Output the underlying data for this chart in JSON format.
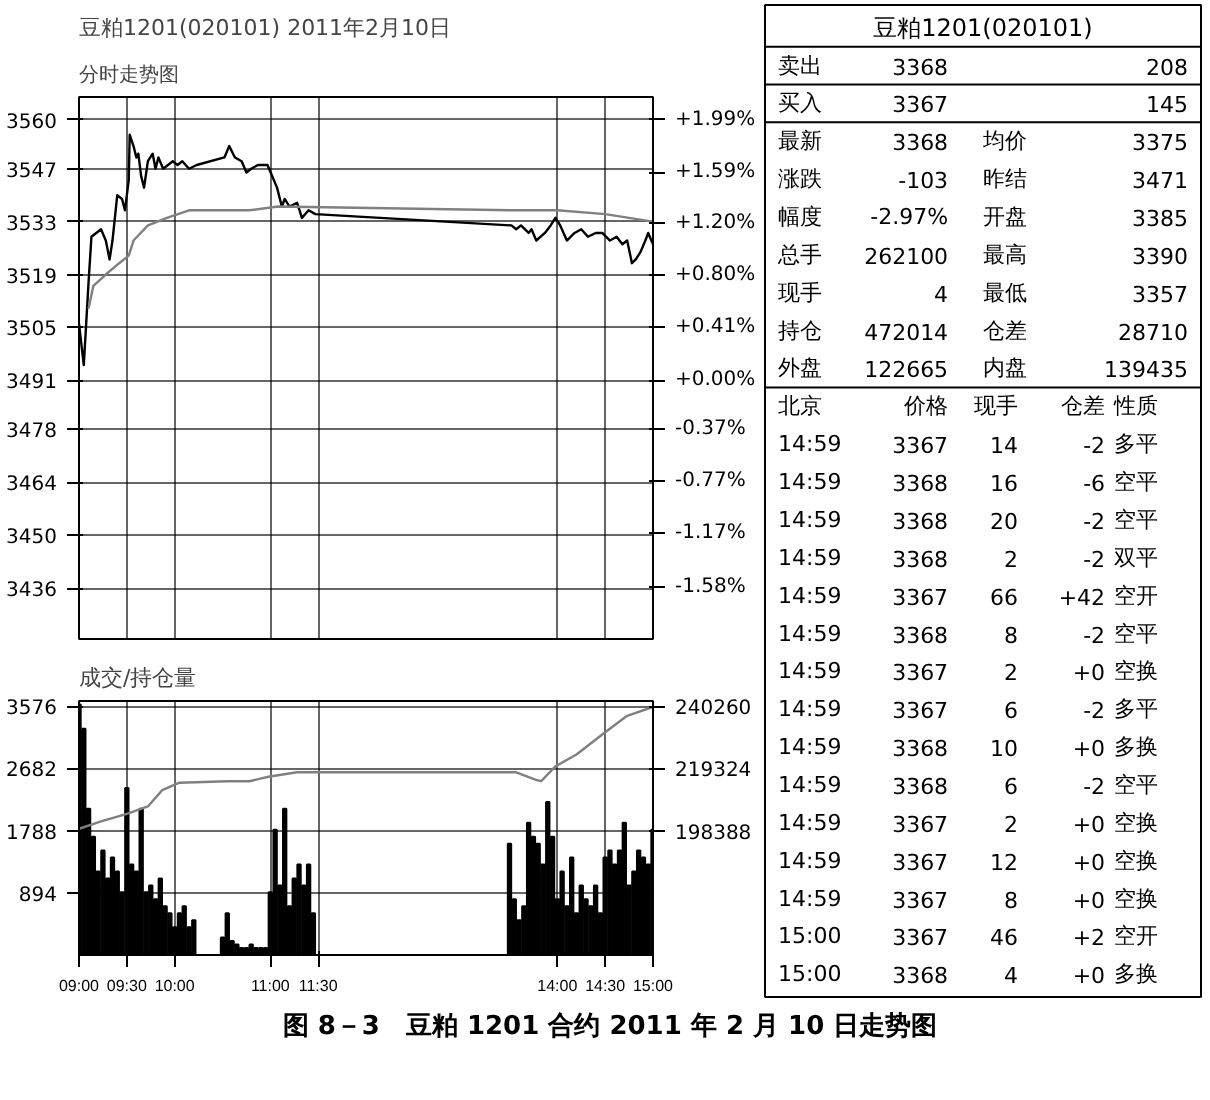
{
  "chart_data": [
    {
      "type": "line",
      "title": "豆粕1201(020101) 2011年2月10日",
      "subtitle": "分时走势图",
      "tick_labels": "y",
      "grid": true,
      "xlim": [
        9,
        15
      ],
      "xticks": [
        9,
        9.5,
        10,
        11,
        11.5,
        14,
        14.5,
        15
      ],
      "ylim": [
        3422.5,
        3566
      ],
      "yticks": [
        3560,
        3547,
        3533,
        3519,
        3505,
        3491,
        3478,
        3464,
        3450,
        3436
      ],
      "y2lim": [
        -1.976,
        2.163
      ],
      "y2ticks": [
        {
          "value": 1.99,
          "label": "+1.99%"
        },
        {
          "value": 1.59,
          "label": "+1.59%"
        },
        {
          "value": 1.2,
          "label": "+1.20%"
        },
        {
          "value": 0.8,
          "label": "+0.80%"
        },
        {
          "value": 0.41,
          "label": "+0.41%"
        },
        {
          "value": 0,
          "label": "+0.00%"
        },
        {
          "value": -0.37,
          "label": "-0.37%"
        },
        {
          "value": -0.77,
          "label": "-0.77%"
        },
        {
          "value": -1.17,
          "label": "-1.17%"
        },
        {
          "value": -1.58,
          "label": "-1.58%"
        }
      ],
      "series": [
        {
          "type": "line",
          "color": "#000000",
          "x": [
            9.0,
            9.05,
            9.1,
            9.13,
            9.18,
            9.23,
            9.28,
            9.32,
            9.35,
            9.4,
            9.45,
            9.48,
            9.52,
            9.53,
            9.57,
            9.6,
            9.62,
            9.65,
            9.68,
            9.72,
            9.77,
            9.8,
            9.83,
            9.88,
            9.93,
            9.98,
            10.03,
            10.08,
            10.15,
            10.23,
            10.52,
            10.57,
            10.63,
            10.7,
            10.75,
            10.8,
            10.87,
            10.97,
            11.02,
            11.07,
            11.12,
            11.15,
            11.2,
            11.28,
            11.33,
            11.4,
            11.47,
            13.52,
            13.57,
            13.62,
            13.7,
            13.73,
            13.78,
            13.87,
            13.93,
            13.98,
            14.03,
            14.1,
            14.18,
            14.25,
            14.32,
            14.4,
            14.47,
            14.55,
            14.62,
            14.68,
            14.73,
            14.78,
            14.82,
            14.87,
            14.92,
            14.95,
            15.0
          ],
          "values": [
            3506,
            3495,
            3517,
            3529,
            3530,
            3531,
            3528,
            3523,
            3528,
            3540,
            3539,
            3536,
            3544,
            3556,
            3553,
            3550,
            3551,
            3545,
            3542,
            3549,
            3551,
            3547,
            3550,
            3547,
            3548,
            3549,
            3548,
            3549,
            3547,
            3548,
            3550,
            3553,
            3550,
            3549,
            3546,
            3547,
            3548,
            3548,
            3545,
            3542,
            3537,
            3539,
            3537,
            3538,
            3534,
            3536,
            3535,
            3532,
            3531,
            3532,
            3530,
            3531,
            3528,
            3530,
            3532,
            3534,
            3532,
            3528,
            3530,
            3531,
            3529,
            3530,
            3530,
            3528,
            3529,
            3527,
            3528,
            3522,
            3523,
            3525,
            3528,
            3530,
            3527
          ]
        },
        {
          "type": "line",
          "color": "#808080",
          "x": [
            9.1,
            9.15,
            9.28,
            9.42,
            9.52,
            9.57,
            9.72,
            9.92,
            10.15,
            10.78,
            11.08,
            13.52,
            14.0,
            14.5,
            15.0
          ],
          "values": [
            3510,
            3516,
            3519,
            3522,
            3524,
            3528,
            3532,
            3534,
            3536,
            3536,
            3537,
            3536,
            3536,
            3535,
            3533
          ]
        }
      ]
    },
    {
      "type": "bar",
      "title": "成交/持仓量",
      "grid": true,
      "xlim": [
        9,
        15
      ],
      "xticks": [
        {
          "value": 9,
          "label": "09:00"
        },
        {
          "value": 9.5,
          "label": "09:30"
        },
        {
          "value": 10,
          "label": "10:00"
        },
        {
          "value": 11,
          "label": "11:00"
        },
        {
          "value": 11.5,
          "label": "11:30"
        },
        {
          "value": 14,
          "label": "14:00"
        },
        {
          "value": 14.5,
          "label": "14:30"
        },
        {
          "value": 15,
          "label": "15:00"
        }
      ],
      "ylim": [
        0,
        3650
      ],
      "yticks": [
        3576,
        2682,
        1788,
        894
      ],
      "y2lim": [
        156517,
        241992
      ],
      "y2ticks": [
        240260,
        219324,
        198388
      ],
      "series": [
        {
          "type": "bar",
          "color": "#000000",
          "x": [
            9.0,
            9.05,
            9.1,
            9.15,
            9.2,
            9.25,
            9.3,
            9.35,
            9.4,
            9.45,
            9.5,
            9.55,
            9.6,
            9.65,
            9.7,
            9.75,
            9.8,
            9.85,
            9.9,
            9.95,
            10.0,
            10.05,
            10.1,
            10.15,
            10.2,
            10.5,
            10.55,
            10.6,
            10.65,
            10.7,
            10.75,
            10.8,
            10.85,
            10.9,
            10.95,
            11.0,
            11.05,
            11.1,
            11.15,
            11.2,
            11.25,
            11.3,
            11.35,
            11.4,
            11.45,
            13.5,
            13.55,
            13.6,
            13.65,
            13.7,
            13.75,
            13.8,
            13.85,
            13.9,
            13.95,
            14.0,
            14.05,
            14.1,
            14.15,
            14.2,
            14.25,
            14.3,
            14.35,
            14.4,
            14.45,
            14.5,
            14.55,
            14.6,
            14.65,
            14.7,
            14.75,
            14.8,
            14.85,
            14.9,
            14.95,
            15.0
          ],
          "values": [
            3600,
            3250,
            2100,
            1700,
            1200,
            1500,
            1100,
            1400,
            1200,
            900,
            2400,
            1300,
            1200,
            2100,
            900,
            1000,
            800,
            1100,
            700,
            600,
            400,
            600,
            700,
            400,
            500,
            250,
            600,
            200,
            150,
            100,
            100,
            150,
            100,
            100,
            100,
            900,
            1800,
            1000,
            2100,
            700,
            1100,
            1300,
            1000,
            1300,
            600,
            1600,
            800,
            500,
            700,
            1900,
            1700,
            1600,
            1300,
            2200,
            1700,
            800,
            1200,
            700,
            1400,
            600,
            1000,
            800,
            700,
            1000,
            600,
            1400,
            1500,
            1300,
            1500,
            1900,
            1000,
            1200,
            1500,
            1400,
            1300,
            1800
          ]
        },
        {
          "type": "line",
          "axis": "y2",
          "color": "#808080",
          "x": [
            9.0,
            9.23,
            9.5,
            9.72,
            9.87,
            10.05,
            10.55,
            10.78,
            10.98,
            11.28,
            13.57,
            13.77,
            13.83,
            13.98,
            14.2,
            14.5,
            14.73,
            15.0
          ],
          "values": [
            199000,
            201500,
            204000,
            206500,
            212000,
            214500,
            215000,
            215000,
            216500,
            218000,
            218000,
            215500,
            215000,
            220000,
            224000,
            231500,
            237000,
            240000
          ]
        }
      ]
    },
    {
      "type": "other",
      "title": "豆粕1201(020101)",
      "annotations": [
        "图 8－3　豆粕 1201 合约 2011 年 2 月 10 日走势图"
      ],
      "cells": [
        [
          "卖出",
          "3368",
          "208"
        ],
        [
          "买入",
          "3367",
          "145"
        ],
        [
          "最新",
          "3368",
          "均价",
          "3375"
        ],
        [
          "涨跌",
          "-103",
          "昨结",
          "3471"
        ],
        [
          "幅度",
          "-2.97%",
          "开盘",
          "3385"
        ],
        [
          "总手",
          "262100",
          "最高",
          "3390"
        ],
        [
          "现手",
          "4",
          "最低",
          "3357"
        ],
        [
          "持仓",
          "472014",
          "仓差",
          "28710"
        ],
        [
          "外盘",
          "122665",
          "内盘",
          "139435"
        ],
        [
          "北京",
          "价格",
          "现手",
          "仓差",
          "性质"
        ],
        [
          "14:59",
          "3367",
          "14",
          "-2",
          "多平"
        ],
        [
          "14:59",
          "3368",
          "16",
          "-6",
          "空平"
        ],
        [
          "14:59",
          "3368",
          "20",
          "-2",
          "空平"
        ],
        [
          "14:59",
          "3368",
          "2",
          "-2",
          "双平"
        ],
        [
          "14:59",
          "3367",
          "66",
          "+42",
          "空开"
        ],
        [
          "14:59",
          "3368",
          "8",
          "-2",
          "空平"
        ],
        [
          "14:59",
          "3367",
          "2",
          "+0",
          "空换"
        ],
        [
          "14:59",
          "3367",
          "6",
          "-2",
          "多平"
        ],
        [
          "14:59",
          "3368",
          "10",
          "+0",
          "多换"
        ],
        [
          "14:59",
          "3368",
          "6",
          "-2",
          "空平"
        ],
        [
          "14:59",
          "3367",
          "2",
          "+0",
          "空换"
        ],
        [
          "14:59",
          "3367",
          "12",
          "+0",
          "空换"
        ],
        [
          "14:59",
          "3367",
          "8",
          "+0",
          "空换"
        ],
        [
          "15:00",
          "3367",
          "46",
          "+2",
          "空开"
        ],
        [
          "15:00",
          "3368",
          "4",
          "+0",
          "多换"
        ]
      ]
    }
  ]
}
